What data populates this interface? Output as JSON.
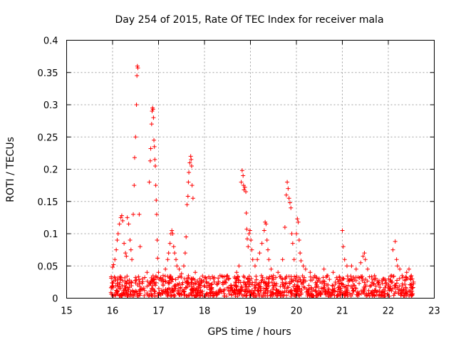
{
  "chart_data": {
    "type": "scatter",
    "title": "Day 254 of 2015, Rate Of TEC Index for receiver mala",
    "xlabel": "GPS time / hours",
    "ylabel": "ROTI / TECUs",
    "xlim": [
      15,
      23
    ],
    "ylim": [
      0,
      0.4
    ],
    "xticks": [
      15,
      16,
      17,
      18,
      19,
      20,
      21,
      22,
      23
    ],
    "xtick_labels": [
      "15",
      "16",
      "17",
      "18",
      "19",
      "20",
      "21",
      "22",
      "23"
    ],
    "yticks": [
      0,
      0.05,
      0.1,
      0.15,
      0.2,
      0.25,
      0.3,
      0.35,
      0.4
    ],
    "ytick_labels": [
      "0",
      "0.05",
      "0.1",
      "0.15",
      "0.2",
      "0.25",
      "0.3",
      "0.35",
      "0.4"
    ],
    "grid": true,
    "marker": "+",
    "color": "#ff0000",
    "series": [
      {
        "name": "ROTI",
        "baseline_band": {
          "x_range": [
            15.95,
            22.55
          ],
          "y_range": [
            0.003,
            0.035
          ]
        },
        "points": [
          [
            16.0,
            0.048
          ],
          [
            16.02,
            0.052
          ],
          [
            16.05,
            0.06
          ],
          [
            16.08,
            0.075
          ],
          [
            16.1,
            0.09
          ],
          [
            16.12,
            0.1
          ],
          [
            16.15,
            0.115
          ],
          [
            16.18,
            0.125
          ],
          [
            16.2,
            0.128
          ],
          [
            16.22,
            0.12
          ],
          [
            16.25,
            0.085
          ],
          [
            16.28,
            0.07
          ],
          [
            16.3,
            0.065
          ],
          [
            16.32,
            0.125
          ],
          [
            16.35,
            0.115
          ],
          [
            16.38,
            0.09
          ],
          [
            16.4,
            0.075
          ],
          [
            16.42,
            0.06
          ],
          [
            16.45,
            0.13
          ],
          [
            16.47,
            0.175
          ],
          [
            16.48,
            0.218
          ],
          [
            16.5,
            0.25
          ],
          [
            16.52,
            0.3
          ],
          [
            16.53,
            0.345
          ],
          [
            16.54,
            0.36
          ],
          [
            16.55,
            0.357
          ],
          [
            16.58,
            0.13
          ],
          [
            16.6,
            0.08
          ],
          [
            16.65,
            0.03
          ],
          [
            16.7,
            0.032
          ],
          [
            16.75,
            0.04
          ],
          [
            16.8,
            0.18
          ],
          [
            16.82,
            0.213
          ],
          [
            16.83,
            0.232
          ],
          [
            16.85,
            0.27
          ],
          [
            16.86,
            0.29
          ],
          [
            16.87,
            0.295
          ],
          [
            16.88,
            0.293
          ],
          [
            16.89,
            0.28
          ],
          [
            16.9,
            0.245
          ],
          [
            16.91,
            0.235
          ],
          [
            16.92,
            0.215
          ],
          [
            16.93,
            0.205
          ],
          [
            16.94,
            0.175
          ],
          [
            16.95,
            0.152
          ],
          [
            16.96,
            0.13
          ],
          [
            16.97,
            0.09
          ],
          [
            16.98,
            0.062
          ],
          [
            17.0,
            0.04
          ],
          [
            17.05,
            0.03
          ],
          [
            17.1,
            0.035
          ],
          [
            17.15,
            0.045
          ],
          [
            17.2,
            0.06
          ],
          [
            17.22,
            0.07
          ],
          [
            17.25,
            0.085
          ],
          [
            17.27,
            0.1
          ],
          [
            17.29,
            0.105
          ],
          [
            17.31,
            0.1
          ],
          [
            17.33,
            0.08
          ],
          [
            17.35,
            0.07
          ],
          [
            17.38,
            0.06
          ],
          [
            17.4,
            0.05
          ],
          [
            17.45,
            0.045
          ],
          [
            17.5,
            0.038
          ],
          [
            17.55,
            0.05
          ],
          [
            17.58,
            0.07
          ],
          [
            17.6,
            0.095
          ],
          [
            17.62,
            0.145
          ],
          [
            17.64,
            0.158
          ],
          [
            17.65,
            0.18
          ],
          [
            17.66,
            0.195
          ],
          [
            17.68,
            0.21
          ],
          [
            17.7,
            0.22
          ],
          [
            17.71,
            0.215
          ],
          [
            17.72,
            0.205
          ],
          [
            17.73,
            0.175
          ],
          [
            17.75,
            0.155
          ],
          [
            17.8,
            0.04
          ],
          [
            17.9,
            0.03
          ],
          [
            18.0,
            0.032
          ],
          [
            18.2,
            0.03
          ],
          [
            18.5,
            0.035
          ],
          [
            18.7,
            0.04
          ],
          [
            18.75,
            0.05
          ],
          [
            18.8,
            0.18
          ],
          [
            18.82,
            0.198
          ],
          [
            18.84,
            0.19
          ],
          [
            18.85,
            0.175
          ],
          [
            18.86,
            0.168
          ],
          [
            18.88,
            0.172
          ],
          [
            18.9,
            0.165
          ],
          [
            18.91,
            0.132
          ],
          [
            18.92,
            0.107
          ],
          [
            18.93,
            0.092
          ],
          [
            18.95,
            0.08
          ],
          [
            18.97,
            0.1
          ],
          [
            18.99,
            0.105
          ],
          [
            19.01,
            0.09
          ],
          [
            19.03,
            0.075
          ],
          [
            19.05,
            0.06
          ],
          [
            19.1,
            0.05
          ],
          [
            19.15,
            0.06
          ],
          [
            19.2,
            0.07
          ],
          [
            19.25,
            0.085
          ],
          [
            19.3,
            0.105
          ],
          [
            19.32,
            0.118
          ],
          [
            19.34,
            0.115
          ],
          [
            19.36,
            0.09
          ],
          [
            19.38,
            0.075
          ],
          [
            19.4,
            0.06
          ],
          [
            19.45,
            0.045
          ],
          [
            19.5,
            0.035
          ],
          [
            19.6,
            0.04
          ],
          [
            19.7,
            0.06
          ],
          [
            19.75,
            0.11
          ],
          [
            19.78,
            0.16
          ],
          [
            19.8,
            0.18
          ],
          [
            19.82,
            0.17
          ],
          [
            19.84,
            0.155
          ],
          [
            19.86,
            0.148
          ],
          [
            19.88,
            0.14
          ],
          [
            19.9,
            0.1
          ],
          [
            19.92,
            0.085
          ],
          [
            19.95,
            0.06
          ],
          [
            20.0,
            0.1
          ],
          [
            20.02,
            0.123
          ],
          [
            20.04,
            0.118
          ],
          [
            20.06,
            0.09
          ],
          [
            20.08,
            0.07
          ],
          [
            20.1,
            0.058
          ],
          [
            20.15,
            0.05
          ],
          [
            20.2,
            0.045
          ],
          [
            20.3,
            0.04
          ],
          [
            20.4,
            0.035
          ],
          [
            20.6,
            0.045
          ],
          [
            20.8,
            0.04
          ],
          [
            21.0,
            0.105
          ],
          [
            21.02,
            0.08
          ],
          [
            21.05,
            0.06
          ],
          [
            21.1,
            0.05
          ],
          [
            21.2,
            0.05
          ],
          [
            21.3,
            0.045
          ],
          [
            21.4,
            0.055
          ],
          [
            21.45,
            0.065
          ],
          [
            21.48,
            0.07
          ],
          [
            21.5,
            0.06
          ],
          [
            21.55,
            0.045
          ],
          [
            21.7,
            0.035
          ],
          [
            21.9,
            0.03
          ],
          [
            22.1,
            0.075
          ],
          [
            22.15,
            0.088
          ],
          [
            22.18,
            0.06
          ],
          [
            22.2,
            0.05
          ],
          [
            22.25,
            0.045
          ],
          [
            22.3,
            0.035
          ],
          [
            22.4,
            0.04
          ],
          [
            22.45,
            0.045
          ],
          [
            22.5,
            0.035
          ],
          [
            22.52,
            0.03
          ],
          [
            22.55,
            0.025
          ]
        ]
      }
    ]
  }
}
